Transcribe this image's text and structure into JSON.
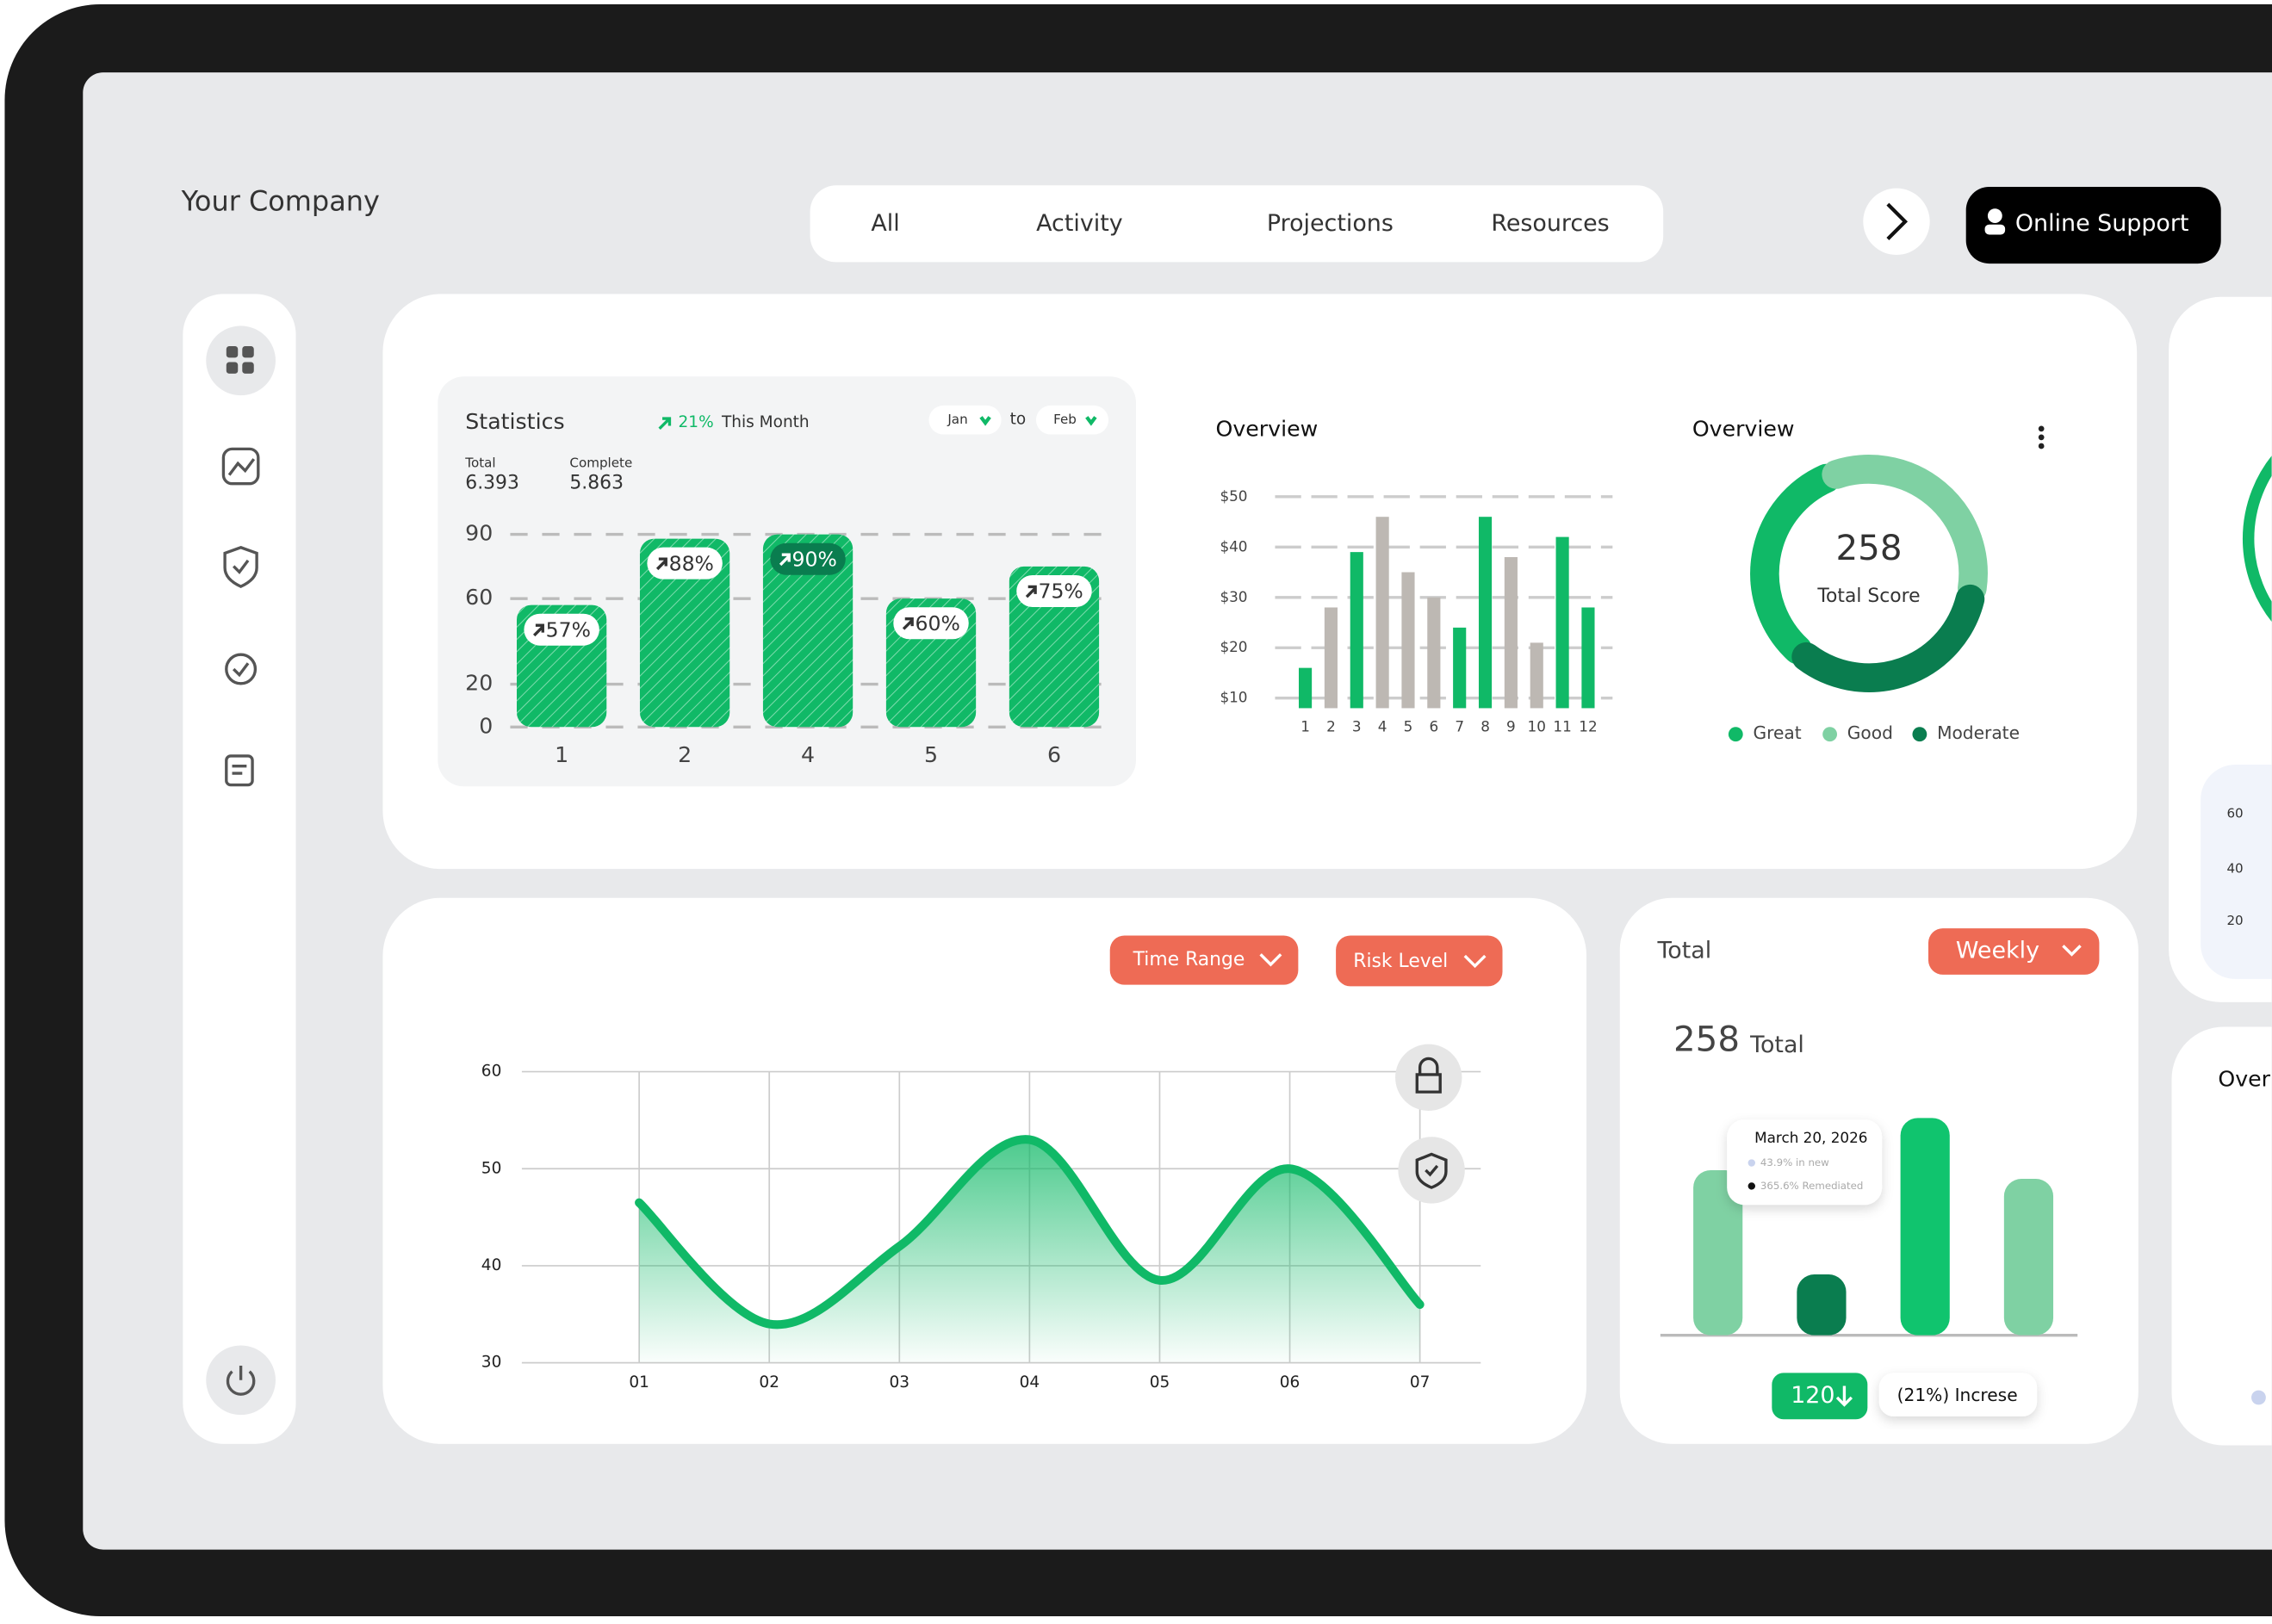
{
  "header": {
    "company": "Your Company",
    "tabs": [
      "All",
      "Activity",
      "Projections",
      "Resources"
    ],
    "support_button": "Online Support"
  },
  "statistics": {
    "change": "21%",
    "period": "This Month",
    "from": "Jan",
    "to_word": "to",
    "to": "Feb",
    "total_label": "Total",
    "total": "6.393",
    "complete_label": "Complete",
    "complete": "5.863"
  },
  "filters": {
    "time_range": "Time Range",
    "risk_level": "Risk Level"
  },
  "total_card": {
    "title": "Total",
    "period": "Weekly",
    "total_value": "258",
    "total_label": "Total",
    "tooltip_date": "March 20, 2026",
    "tooltip_new": "43.9% in new",
    "tooltip_remediated": "365.6% Remediated",
    "change_value": "120",
    "change_text": "(21%) Increse"
  },
  "side_panel": {
    "yticks": [
      "60",
      "40",
      "20"
    ],
    "title": "Over"
  },
  "chart_data": [
    {
      "type": "bar",
      "title": "Statistics",
      "categories": [
        "1",
        "2",
        "4",
        "5",
        "6"
      ],
      "values": [
        57,
        88,
        90,
        60,
        75
      ],
      "value_labels": [
        "57%",
        "88%",
        "90%",
        "60%",
        "75%"
      ],
      "color": "#10b967",
      "ylim": [
        0,
        90
      ],
      "yticks": [
        0,
        20,
        60,
        90
      ],
      "grid": true
    },
    {
      "type": "bar",
      "title": "Overview",
      "categories": [
        "1",
        "2",
        "3",
        "4",
        "5",
        "6",
        "7",
        "8",
        "9",
        "10",
        "11",
        "12"
      ],
      "values": [
        16,
        28,
        39,
        46,
        35,
        30,
        24,
        46,
        38,
        21,
        42,
        28
      ],
      "colors": [
        "#10b967",
        "#bdb8b3",
        "#10b967",
        "#bdb8b3",
        "#bdb8b3",
        "#bdb8b3",
        "#10b967",
        "#10b967",
        "#bdb8b3",
        "#bdb8b3",
        "#10b967",
        "#10b967"
      ],
      "ylim": [
        8,
        52
      ],
      "yticks": [
        {
          "value": 10,
          "label": "$10"
        },
        {
          "value": 20,
          "label": "$20"
        },
        {
          "value": 30,
          "label": "$30"
        },
        {
          "value": 40,
          "label": "$40"
        },
        {
          "value": 50,
          "label": "$50"
        }
      ],
      "grid": true
    },
    {
      "type": "pie",
      "title": "Overview",
      "center_value": 258,
      "center_label": "Total Score",
      "categories": [
        "Great",
        "Good",
        "Moderate"
      ],
      "values": [
        33,
        34,
        33
      ],
      "colors": [
        "#10b967",
        "#7fd1a3",
        "#0a7d4f"
      ]
    },
    {
      "type": "area",
      "categories": [
        "01",
        "02",
        "03",
        "04",
        "05",
        "06",
        "07"
      ],
      "values": [
        46.5,
        34,
        42,
        53,
        38.5,
        50,
        36
      ],
      "color": "#10b967",
      "ylim": [
        30,
        60
      ],
      "yticks": [
        30,
        40,
        50,
        60
      ],
      "grid": true
    },
    {
      "type": "bar",
      "categories": [
        null,
        null,
        null,
        null
      ],
      "values": [
        114,
        42,
        150,
        108
      ],
      "colors": [
        "#7fd1a3",
        "#0a7d4f",
        "#10c46e",
        "#7fd1a3"
      ],
      "ylim": [
        0,
        150
      ]
    }
  ]
}
